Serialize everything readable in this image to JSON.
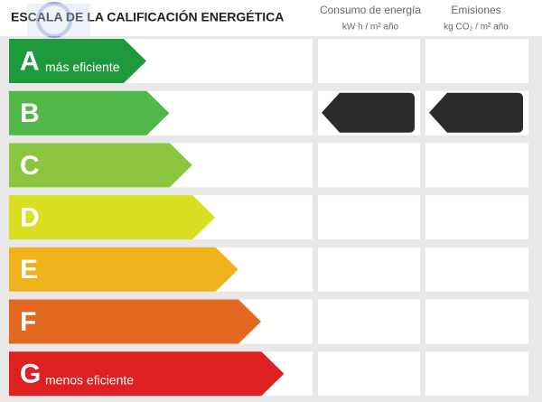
{
  "header": {
    "title": "ESCALA DE LA CALIFICACIÓN ENERGÉTICA",
    "columns": [
      {
        "title": "Consumo de energía",
        "unit": "kW h / m² año"
      },
      {
        "title": "Emisiones",
        "unit": "kg CO₂ / m² año"
      }
    ]
  },
  "rows": [
    {
      "letter": "A",
      "label": "más eficiente",
      "color": "#1e9a3c"
    },
    {
      "letter": "B",
      "color": "#50b848"
    },
    {
      "letter": "C",
      "color": "#8cc63f"
    },
    {
      "letter": "D",
      "color": "#d8e021"
    },
    {
      "letter": "E",
      "color": "#f0b21b"
    },
    {
      "letter": "F",
      "color": "#e2691f"
    },
    {
      "letter": "G",
      "label": "menos eficiente",
      "color": "#e01f20"
    }
  ]
}
